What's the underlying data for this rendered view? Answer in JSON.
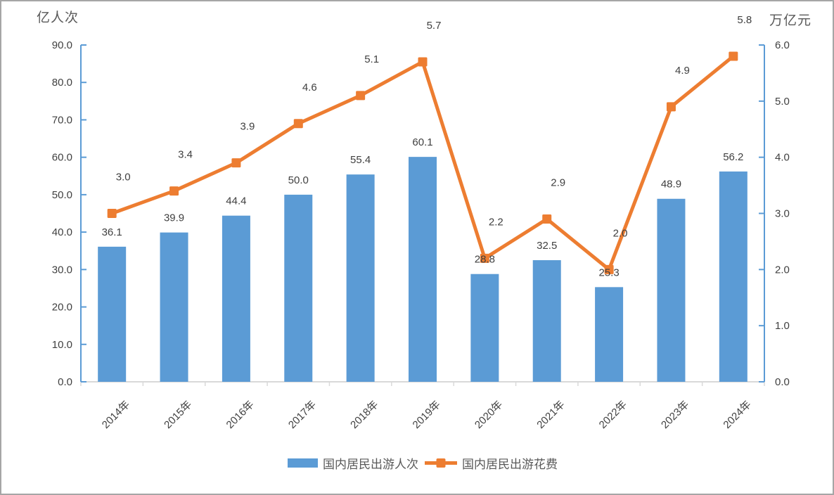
{
  "chart_data": {
    "type": "combo-bar-line",
    "categories": [
      "2014年",
      "2015年",
      "2016年",
      "2017年",
      "2018年",
      "2019年",
      "2020年",
      "2021年",
      "2022年",
      "2023年",
      "2024年"
    ],
    "series": [
      {
        "name": "国内居民出游人次",
        "type": "bar",
        "axis": "left",
        "color": "#5B9BD5",
        "values": [
          36.1,
          39.9,
          44.4,
          50.0,
          55.4,
          60.1,
          28.8,
          32.5,
          25.3,
          48.9,
          56.2
        ]
      },
      {
        "name": "国内居民出游花费",
        "type": "line",
        "axis": "right",
        "color": "#ED7D31",
        "marker": "square",
        "values": [
          3.0,
          3.4,
          3.9,
          4.6,
          5.1,
          5.7,
          2.2,
          2.9,
          2.0,
          4.9,
          5.8
        ]
      }
    ],
    "left_axis": {
      "title": "亿人次",
      "min": 0,
      "max": 90,
      "step": 10,
      "tick_labels": [
        "0.0",
        "10.0",
        "20.0",
        "30.0",
        "40.0",
        "50.0",
        "60.0",
        "70.0",
        "80.0",
        "90.0"
      ],
      "line_color": "#5B9BD5"
    },
    "right_axis": {
      "title": "万亿元",
      "min": 0,
      "max": 6,
      "step": 1,
      "tick_labels": [
        "0.0",
        "1.0",
        "2.0",
        "3.0",
        "4.0",
        "5.0",
        "6.0"
      ],
      "line_color": "#5B9BD5"
    },
    "x_axis": {
      "line_color": "#D9D9D9",
      "label_rotation_deg": -45
    },
    "grid": false,
    "data_labels_shown": true,
    "label_color": "#404040",
    "legend_position": "bottom"
  }
}
